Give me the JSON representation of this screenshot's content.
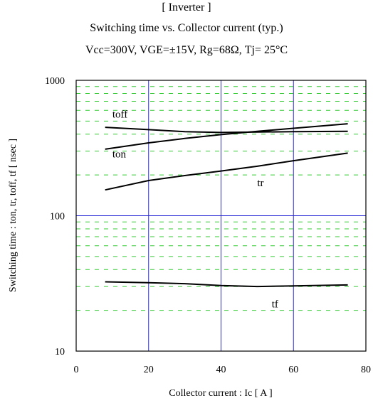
{
  "chart_data": {
    "type": "line",
    "title": "[ Inverter ]",
    "subtitle": "Switching time  vs.  Collector current  (typ.)",
    "conditions": "Vcc=300V, VGE=±15V, Rg=68Ω, Tj= 25°C",
    "xlabel": "Collector current : Ic  [ A ]",
    "ylabel": "Switching time  : ton, tr, toff, tf  [ nsec ]",
    "xlim": [
      0,
      80
    ],
    "ylim": [
      10,
      1000
    ],
    "yscale": "log",
    "xticks": [
      "0",
      "20",
      "40",
      "60",
      "80"
    ],
    "yticks": [
      "10",
      "100",
      "1000"
    ],
    "grid": true,
    "series": [
      {
        "name": "toff",
        "x": [
          8,
          20,
          30,
          40,
          50,
          60,
          75
        ],
        "y": [
          450,
          432,
          418,
          412,
          415,
          418,
          420
        ]
      },
      {
        "name": "ton",
        "x": [
          8,
          20,
          30,
          40,
          50,
          60,
          75
        ],
        "y": [
          310,
          345,
          372,
          397,
          420,
          442,
          478
        ]
      },
      {
        "name": "tr",
        "x": [
          8,
          20,
          30,
          40,
          50,
          60,
          75
        ],
        "y": [
          155,
          182,
          198,
          214,
          232,
          255,
          290
        ]
      },
      {
        "name": "tf",
        "x": [
          8,
          20,
          30,
          40,
          50,
          60,
          75
        ],
        "y": [
          32.5,
          32.0,
          31.5,
          30.5,
          30.0,
          30.3,
          30.8
        ]
      }
    ],
    "label_positions": [
      {
        "text": "toff",
        "x": 10,
        "y": 530
      },
      {
        "text": "ton",
        "x": 10,
        "y": 270
      },
      {
        "text": "tr",
        "x": 50,
        "y": 165
      },
      {
        "text": "tf",
        "x": 54,
        "y": 21
      }
    ]
  },
  "colors": {
    "axis": "#000000",
    "major_grid": "#2b2bd6",
    "minor_grid": "#33cc33",
    "series": "#000000"
  }
}
